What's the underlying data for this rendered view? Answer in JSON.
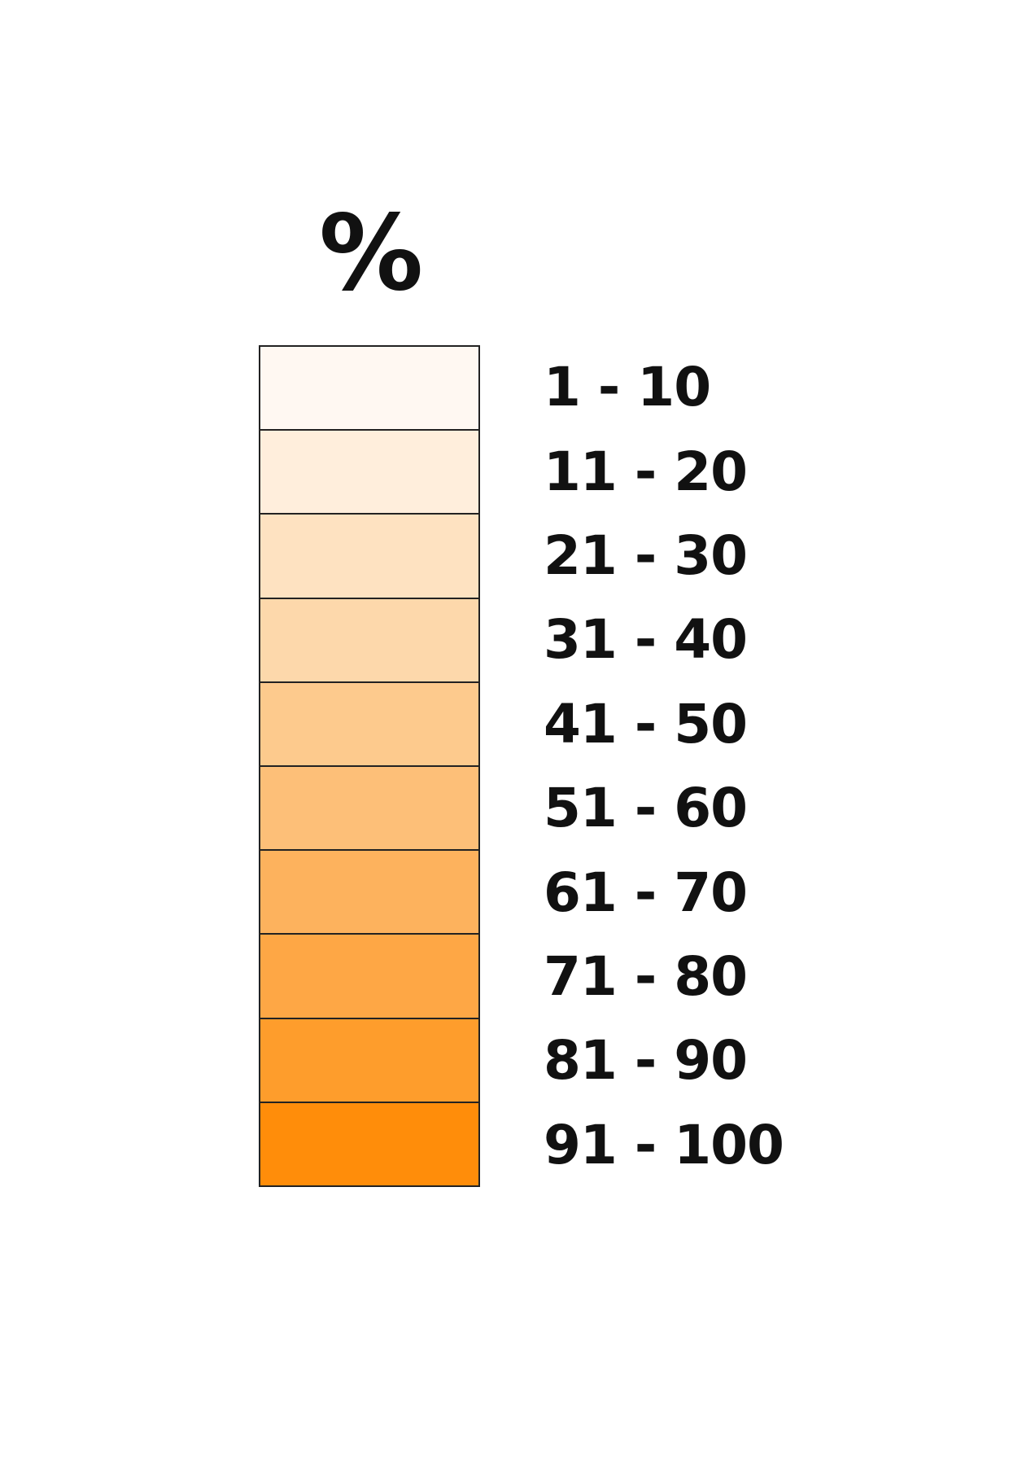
{
  "legend": {
    "title": "%",
    "items": [
      {
        "label": "1 - 10",
        "color": "#fff8f2"
      },
      {
        "label": "11 - 20",
        "color": "#ffeedc"
      },
      {
        "label": "21 - 30",
        "color": "#fee2c1"
      },
      {
        "label": "31 - 40",
        "color": "#fdd8ab"
      },
      {
        "label": "41 - 50",
        "color": "#fdca8d"
      },
      {
        "label": "51 - 60",
        "color": "#fdbf78"
      },
      {
        "label": "61 - 70",
        "color": "#fdb25d"
      },
      {
        "label": "71 - 80",
        "color": "#fea745"
      },
      {
        "label": "81 - 90",
        "color": "#fe9d2c"
      },
      {
        "label": "91 - 100",
        "color": "#ff8d0a"
      }
    ]
  }
}
